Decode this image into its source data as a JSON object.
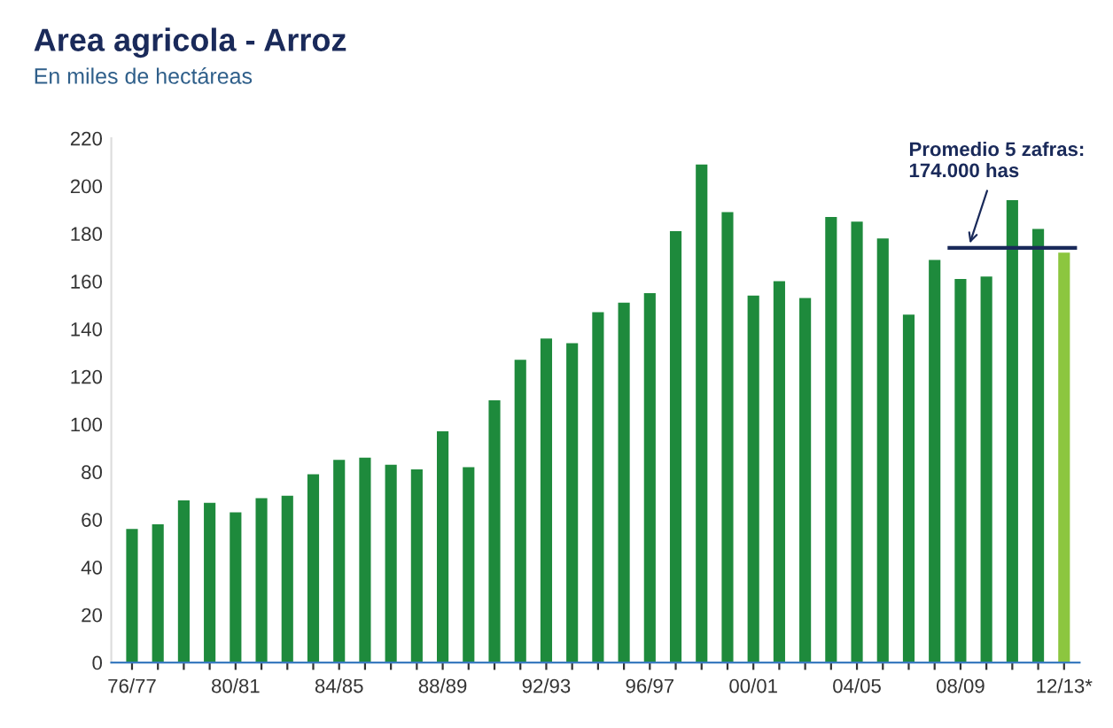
{
  "chart_data": {
    "type": "bar",
    "title": "Area agricola - Arroz",
    "subtitle": "En miles de hectáreas",
    "categories": [
      "76/77",
      null,
      null,
      null,
      "80/81",
      null,
      null,
      null,
      "84/85",
      null,
      null,
      null,
      "88/89",
      null,
      null,
      null,
      "92/93",
      null,
      null,
      null,
      "96/97",
      null,
      null,
      null,
      "00/01",
      null,
      null,
      null,
      "04/05",
      null,
      null,
      null,
      "08/09",
      null,
      null,
      null,
      "12/13*"
    ],
    "values": [
      56,
      58,
      68,
      67,
      63,
      69,
      70,
      79,
      85,
      86,
      83,
      81,
      97,
      82,
      110,
      127,
      136,
      134,
      147,
      151,
      155,
      181,
      209,
      189,
      154,
      160,
      153,
      187,
      185,
      178,
      146,
      169,
      161,
      162,
      194,
      182,
      172
    ],
    "colors": [
      "#1e8a3c",
      "#1e8a3c",
      "#1e8a3c",
      "#1e8a3c",
      "#1e8a3c",
      "#1e8a3c",
      "#1e8a3c",
      "#1e8a3c",
      "#1e8a3c",
      "#1e8a3c",
      "#1e8a3c",
      "#1e8a3c",
      "#1e8a3c",
      "#1e8a3c",
      "#1e8a3c",
      "#1e8a3c",
      "#1e8a3c",
      "#1e8a3c",
      "#1e8a3c",
      "#1e8a3c",
      "#1e8a3c",
      "#1e8a3c",
      "#1e8a3c",
      "#1e8a3c",
      "#1e8a3c",
      "#1e8a3c",
      "#1e8a3c",
      "#1e8a3c",
      "#1e8a3c",
      "#1e8a3c",
      "#1e8a3c",
      "#1e8a3c",
      "#1e8a3c",
      "#1e8a3c",
      "#1e8a3c",
      "#1e8a3c",
      "#8cc63f"
    ],
    "ylim": [
      0,
      220
    ],
    "yticks": [
      0,
      20,
      40,
      60,
      80,
      100,
      120,
      140,
      160,
      180,
      200,
      220
    ],
    "ref_lines": [
      {
        "axis": "y",
        "value": 174,
        "label": "Promedio 5 zafras:\n174.000 has",
        "color": "#1a2a5a"
      }
    ],
    "grid": false
  }
}
